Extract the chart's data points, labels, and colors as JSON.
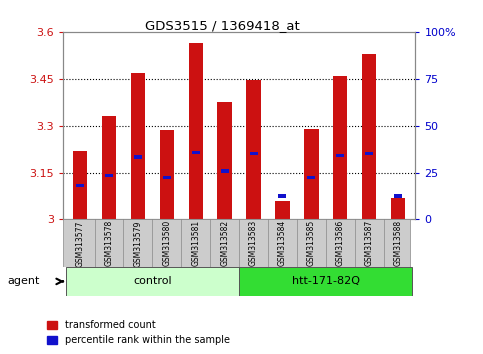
{
  "title": "GDS3515 / 1369418_at",
  "samples": [
    "GSM313577",
    "GSM313578",
    "GSM313579",
    "GSM313580",
    "GSM313581",
    "GSM313582",
    "GSM313583",
    "GSM313584",
    "GSM313585",
    "GSM313586",
    "GSM313587",
    "GSM313588"
  ],
  "bar_values": [
    3.22,
    3.33,
    3.47,
    3.285,
    3.565,
    3.375,
    3.445,
    3.06,
    3.29,
    3.46,
    3.53,
    3.07
  ],
  "percentile_values": [
    3.11,
    3.14,
    3.2,
    3.135,
    3.215,
    3.155,
    3.21,
    3.075,
    3.135,
    3.205,
    3.21,
    3.075
  ],
  "ymin": 3.0,
  "ymax": 3.6,
  "yticks": [
    3.0,
    3.15,
    3.3,
    3.45,
    3.6
  ],
  "ytick_labels": [
    "3",
    "3.15",
    "3.3",
    "3.45",
    "3.6"
  ],
  "y2ticks": [
    0,
    25,
    50,
    75,
    100
  ],
  "y2tick_labels": [
    "0",
    "25",
    "50",
    "75",
    "100%"
  ],
  "bar_color": "#cc1111",
  "percentile_color": "#1111cc",
  "grid_color": "#000000",
  "control_color": "#ccffcc",
  "treatment_color": "#33dd33",
  "control_label": "control",
  "treatment_label": "htt-171-82Q",
  "agent_label": "agent",
  "legend_items": [
    "transformed count",
    "percentile rank within the sample"
  ],
  "control_indices": [
    0,
    1,
    2,
    3,
    4,
    5
  ],
  "treatment_indices": [
    6,
    7,
    8,
    9,
    10,
    11
  ],
  "bar_width": 0.5,
  "left_color": "#cc1111",
  "right_color": "#0000cc",
  "grid_yticks": [
    3.15,
    3.3,
    3.45
  ]
}
